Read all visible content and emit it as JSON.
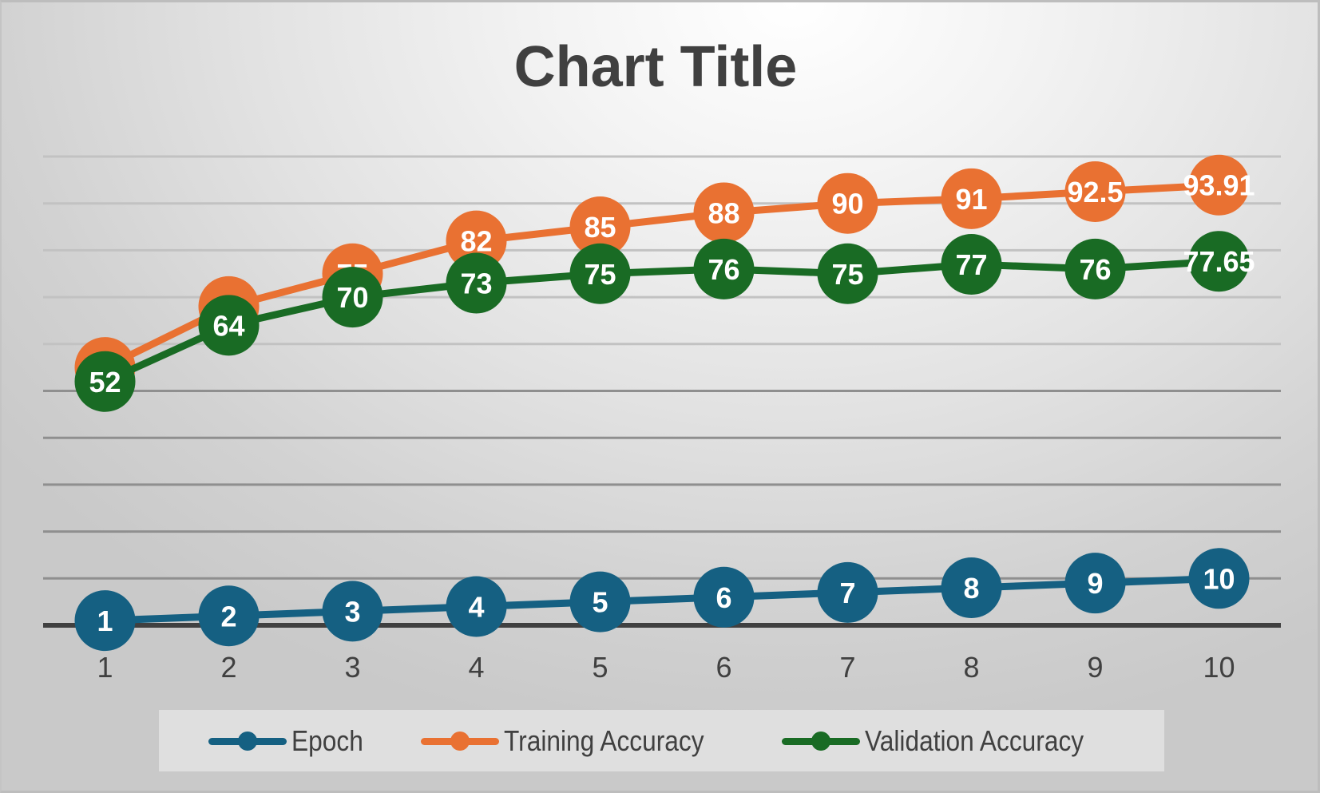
{
  "chart": {
    "title": "Chart Title"
  },
  "legend": {
    "items": [
      {
        "label": "Epoch",
        "color": "#156082"
      },
      {
        "label": "Training Accuracy",
        "color": "#E97132"
      },
      {
        "label": "Validation Accuracy",
        "color": "#196B24"
      }
    ]
  },
  "chart_data": {
    "type": "line",
    "title": "Chart Title",
    "xlabel": "",
    "ylabel": "",
    "categories": [
      "1",
      "2",
      "3",
      "4",
      "5",
      "6",
      "7",
      "8",
      "9",
      "10"
    ],
    "series": [
      {
        "name": "Epoch",
        "color": "#156082",
        "values": [
          1,
          2,
          3,
          4,
          5,
          6,
          7,
          8,
          9,
          10
        ],
        "labels": [
          "1",
          "2",
          "3",
          "4",
          "5",
          "6",
          "7",
          "8",
          "9",
          "10"
        ]
      },
      {
        "name": "Training Accuracy",
        "color": "#E97132",
        "values": [
          55,
          68,
          75,
          82,
          85,
          88,
          90,
          91,
          92.5,
          93.91
        ],
        "labels": [
          "55",
          "68",
          "75",
          "82",
          "85",
          "88",
          "90",
          "91",
          "92.5",
          "93.91"
        ]
      },
      {
        "name": "Validation Accuracy",
        "color": "#196B24",
        "values": [
          52,
          64,
          70,
          73,
          75,
          76,
          75,
          77,
          76,
          77.65
        ],
        "labels": [
          "52",
          "64",
          "70",
          "73",
          "75",
          "76",
          "75",
          "77",
          "76",
          "77.65"
        ]
      }
    ],
    "ylim": [
      0,
      100
    ],
    "y_major_unit": 10,
    "y_tick_labels_visible": false,
    "grid": true,
    "data_labels": true,
    "markers": "circle",
    "legend_position": "bottom"
  }
}
